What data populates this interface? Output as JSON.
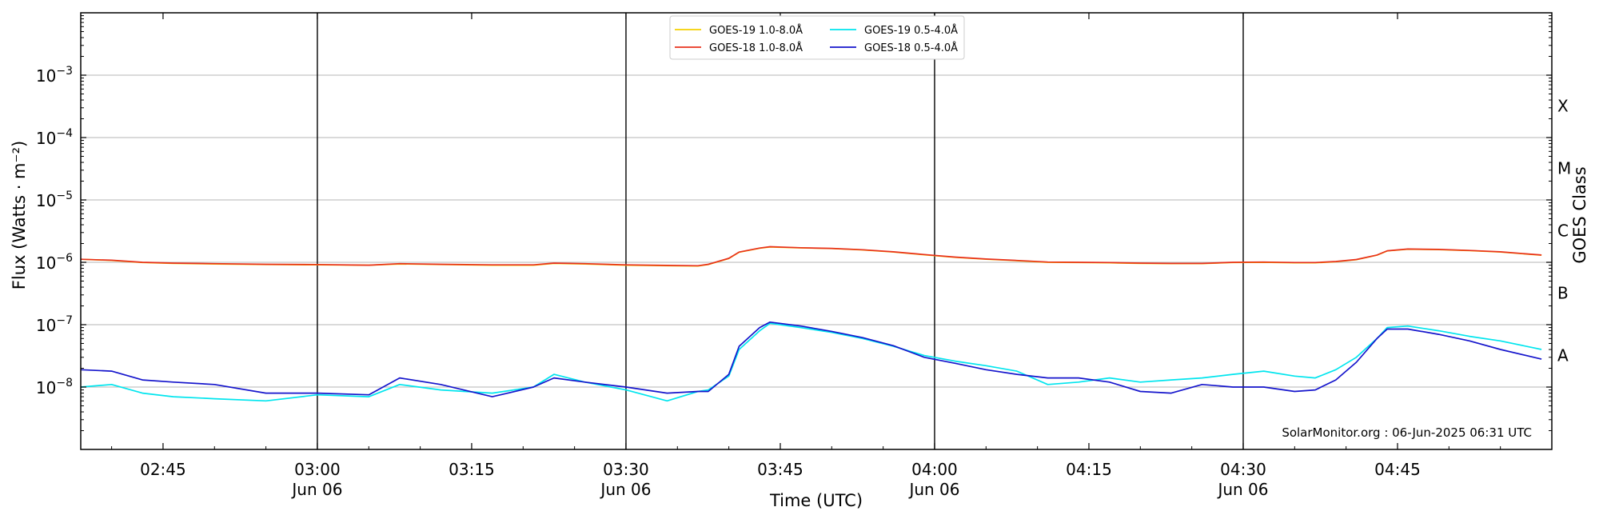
{
  "chart_data": {
    "type": "line",
    "xlabel": "Time (UTC)",
    "ylabel": "Flux (Watts · m⁻²)",
    "y2label": "GOES Class",
    "yscale": "log",
    "ylim": [
      1e-09,
      0.01
    ],
    "xlim": [
      "2025-06-06T02:37",
      "2025-06-06T05:00"
    ],
    "grid": "horizontal at decades; vertical lines at half-hours",
    "legend_position": "top-center",
    "credit": "SolarMonitor.org : 06-Jun-2025 06:31 UTC",
    "x_ticks": [
      {
        "time": "2025-06-06T02:45",
        "label": "02:45",
        "sublabel": ""
      },
      {
        "time": "2025-06-06T03:00",
        "label": "03:00",
        "sublabel": "Jun 06"
      },
      {
        "time": "2025-06-06T03:15",
        "label": "03:15",
        "sublabel": ""
      },
      {
        "time": "2025-06-06T03:30",
        "label": "03:30",
        "sublabel": "Jun 06"
      },
      {
        "time": "2025-06-06T03:45",
        "label": "03:45",
        "sublabel": ""
      },
      {
        "time": "2025-06-06T04:00",
        "label": "04:00",
        "sublabel": "Jun 06"
      },
      {
        "time": "2025-06-06T04:15",
        "label": "04:15",
        "sublabel": ""
      },
      {
        "time": "2025-06-06T04:30",
        "label": "04:30",
        "sublabel": "Jun 06"
      },
      {
        "time": "2025-06-06T04:45",
        "label": "04:45",
        "sublabel": ""
      }
    ],
    "vertical_lines": [
      "2025-06-06T03:00",
      "2025-06-06T03:30",
      "2025-06-06T04:00",
      "2025-06-06T04:30"
    ],
    "y_ticks": [
      {
        "value": 1e-08,
        "base": "10",
        "exp": "−8"
      },
      {
        "value": 1e-07,
        "base": "10",
        "exp": "−7"
      },
      {
        "value": 1e-06,
        "base": "10",
        "exp": "−6"
      },
      {
        "value": 1e-05,
        "base": "10",
        "exp": "−5"
      },
      {
        "value": 0.0001,
        "base": "10",
        "exp": "−4"
      },
      {
        "value": 0.001,
        "base": "10",
        "exp": "−3"
      }
    ],
    "goes_classes": [
      {
        "label": "A",
        "value": 1e-08
      },
      {
        "label": "B",
        "value": 1e-07
      },
      {
        "label": "C",
        "value": 1e-06
      },
      {
        "label": "M",
        "value": 1e-05
      },
      {
        "label": "X",
        "value": 0.0001
      }
    ],
    "x": [
      "02:37",
      "02:40",
      "02:43",
      "02:46",
      "02:50",
      "02:55",
      "03:00",
      "03:05",
      "03:08",
      "03:12",
      "03:17",
      "03:21",
      "03:23",
      "03:26",
      "03:30",
      "03:34",
      "03:37",
      "03:38",
      "03:40",
      "03:41",
      "03:43",
      "03:44",
      "03:47",
      "03:50",
      "03:53",
      "03:56",
      "03:59",
      "04:02",
      "04:05",
      "04:08",
      "04:11",
      "04:14",
      "04:17",
      "04:20",
      "04:23",
      "04:26",
      "04:29",
      "04:32",
      "04:35",
      "04:37",
      "04:39",
      "04:41",
      "04:43",
      "04:44",
      "04:46",
      "04:49",
      "04:52",
      "04:55",
      "04:59"
    ],
    "series": [
      {
        "name": "GOES-19 1.0-8.0Å",
        "color": "#f5d000",
        "values": [
          1.12e-06,
          1.07e-06,
          9.9e-07,
          9.6e-07,
          9.4e-07,
          9.2e-07,
          9.1e-07,
          9e-07,
          9.4e-07,
          9.2e-07,
          9e-07,
          9e-07,
          9.6e-07,
          9.4e-07,
          9e-07,
          8.8e-07,
          8.7e-07,
          9.2e-07,
          1.15e-06,
          1.45e-06,
          1.68e-06,
          1.76e-06,
          1.7e-06,
          1.66e-06,
          1.58e-06,
          1.46e-06,
          1.32e-06,
          1.2e-06,
          1.12e-06,
          1.06e-06,
          1e-06,
          9.9e-07,
          9.8e-07,
          9.6e-07,
          9.5e-07,
          9.5e-07,
          9.9e-07,
          1e-06,
          9.8e-07,
          9.8e-07,
          1.02e-06,
          1.1e-06,
          1.3e-06,
          1.52e-06,
          1.62e-06,
          1.6e-06,
          1.54e-06,
          1.46e-06,
          1.3e-06
        ]
      },
      {
        "name": "GOES-18 1.0-8.0Å",
        "color": "#e8321e",
        "values": [
          1.12e-06,
          1.08e-06,
          1e-06,
          9.7e-07,
          9.5e-07,
          9.3e-07,
          9.2e-07,
          9e-07,
          9.5e-07,
          9.3e-07,
          9.1e-07,
          9.1e-07,
          9.7e-07,
          9.5e-07,
          9.1e-07,
          8.9e-07,
          8.8e-07,
          9.3e-07,
          1.16e-06,
          1.46e-06,
          1.69e-06,
          1.78e-06,
          1.71e-06,
          1.67e-06,
          1.59e-06,
          1.47e-06,
          1.33e-06,
          1.21e-06,
          1.13e-06,
          1.07e-06,
          1.01e-06,
          1e-06,
          9.9e-07,
          9.7e-07,
          9.6e-07,
          9.6e-07,
          1e-06,
          1.01e-06,
          9.9e-07,
          9.9e-07,
          1.03e-06,
          1.11e-06,
          1.31e-06,
          1.53e-06,
          1.63e-06,
          1.61e-06,
          1.55e-06,
          1.47e-06,
          1.31e-06
        ]
      },
      {
        "name": "GOES-19 0.5-4.0Å",
        "color": "#00e5ee",
        "values": [
          1e-08,
          1.1e-08,
          8e-09,
          7e-09,
          6.5e-09,
          6e-09,
          7.5e-09,
          7e-09,
          1.1e-08,
          9e-09,
          8e-09,
          1e-08,
          1.6e-08,
          1.2e-08,
          9e-09,
          6e-09,
          8.5e-09,
          9e-09,
          1.5e-08,
          4e-08,
          8e-08,
          1.05e-07,
          9e-08,
          7.5e-08,
          6e-08,
          4.5e-08,
          3.2e-08,
          2.6e-08,
          2.2e-08,
          1.8e-08,
          1.1e-08,
          1.2e-08,
          1.4e-08,
          1.2e-08,
          1.3e-08,
          1.4e-08,
          1.6e-08,
          1.8e-08,
          1.5e-08,
          1.4e-08,
          1.9e-08,
          3e-08,
          6e-08,
          9e-08,
          9.5e-08,
          8e-08,
          6.5e-08,
          5.5e-08,
          4e-08
        ]
      },
      {
        "name": "GOES-18 0.5-4.0Å",
        "color": "#1515cc",
        "values": [
          1.9e-08,
          1.8e-08,
          1.3e-08,
          1.2e-08,
          1.1e-08,
          8e-09,
          8e-09,
          7.5e-09,
          1.4e-08,
          1.1e-08,
          7e-09,
          1e-08,
          1.4e-08,
          1.2e-08,
          1e-08,
          8e-09,
          8.5e-09,
          8.5e-09,
          1.6e-08,
          4.5e-08,
          9e-08,
          1.1e-07,
          9.5e-08,
          7.8e-08,
          6.2e-08,
          4.6e-08,
          3e-08,
          2.4e-08,
          1.9e-08,
          1.6e-08,
          1.4e-08,
          1.4e-08,
          1.2e-08,
          8.5e-09,
          8e-09,
          1.1e-08,
          1e-08,
          1e-08,
          8.5e-09,
          9e-09,
          1.3e-08,
          2.5e-08,
          6e-08,
          8.5e-08,
          8.5e-08,
          7e-08,
          5.5e-08,
          4e-08,
          2.8e-08
        ]
      }
    ]
  }
}
